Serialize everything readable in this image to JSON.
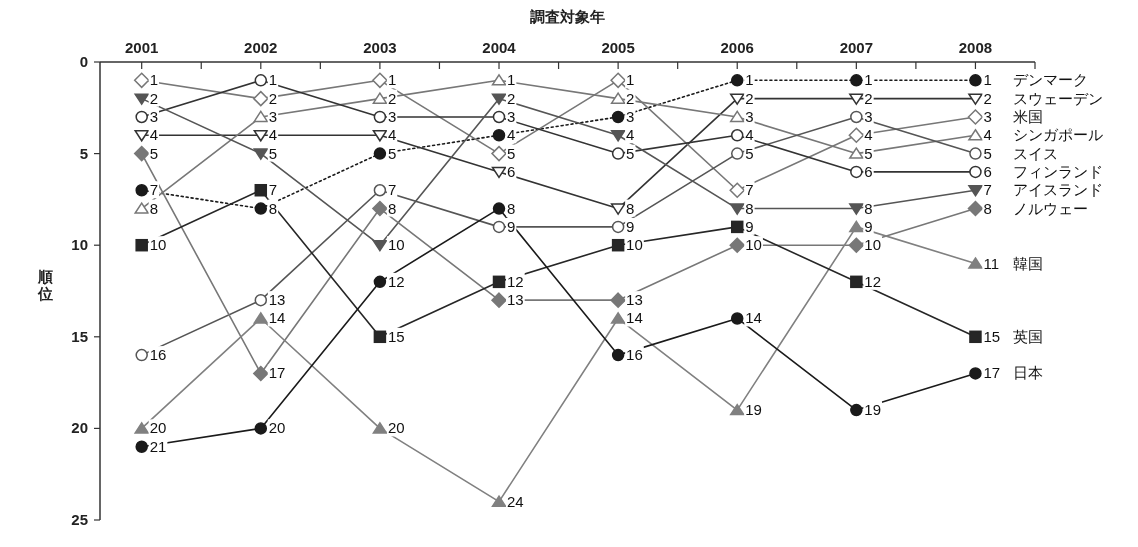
{
  "chart_data": {
    "type": "line",
    "xlabel": "調査対象年",
    "ylabel": "順位",
    "x": [
      2001,
      2002,
      2003,
      2004,
      2005,
      2006,
      2007,
      2008
    ],
    "xlim": [
      2000.65,
      2008.5
    ],
    "xticks": [
      2001,
      {
        "value": 2001.5,
        "label": null
      },
      2002,
      {
        "value": 2002.5,
        "label": null
      },
      2003,
      {
        "value": 2003.5,
        "label": null
      },
      2004,
      {
        "value": 2004.5,
        "label": null
      },
      2005,
      {
        "value": 2005.5,
        "label": null
      },
      2006,
      {
        "value": 2006.5,
        "label": null
      },
      2007,
      {
        "value": 2007.5,
        "label": null
      },
      2008,
      {
        "value": 2008.5,
        "label": null
      }
    ],
    "ylim": [
      25,
      0
    ],
    "yticks": [
      0,
      5,
      10,
      15,
      20,
      25
    ],
    "data_labels": true,
    "legend": false,
    "grid": false,
    "series": [
      {
        "name": "デンマーク",
        "color": "#1a1a1a",
        "marker": "circle",
        "line_style": "dotted",
        "values": [
          7,
          8,
          5,
          4,
          3,
          1,
          1,
          1
        ]
      },
      {
        "name": "スウェーデン",
        "color": "#333333",
        "marker": "triangle-down-open",
        "line_style": "solid",
        "values": [
          4,
          4,
          4,
          6,
          8,
          2,
          2,
          2
        ]
      },
      {
        "name": "米国",
        "color": "#777777",
        "marker": "diamond-open",
        "line_style": "solid",
        "values": [
          1,
          2,
          1,
          5,
          1,
          7,
          4,
          3
        ]
      },
      {
        "name": "シンガポール",
        "color": "#777777",
        "marker": "triangle-open",
        "line_style": "solid",
        "values": [
          8,
          3,
          2,
          1,
          2,
          3,
          5,
          4
        ]
      },
      {
        "name": "スイス",
        "color": "#555555",
        "marker": "circle-open",
        "line_style": "solid",
        "values": [
          16,
          13,
          7,
          9,
          9,
          5,
          3,
          5
        ]
      },
      {
        "name": "フィンランド",
        "color": "#333333",
        "marker": "circle-open",
        "line_style": "solid",
        "values": [
          3,
          1,
          3,
          3,
          5,
          4,
          6,
          6
        ]
      },
      {
        "name": "アイスランド",
        "color": "#555555",
        "marker": "triangle-down",
        "line_style": "solid",
        "values": [
          2,
          5,
          10,
          2,
          4,
          8,
          8,
          7
        ]
      },
      {
        "name": "ノルウェー",
        "color": "#777777",
        "marker": "diamond",
        "line_style": "solid",
        "values": [
          5,
          17,
          8,
          13,
          13,
          10,
          10,
          8
        ]
      },
      {
        "name": "韓国",
        "color": "#808080",
        "marker": "triangle",
        "line_style": "solid",
        "values": [
          20,
          14,
          20,
          24,
          14,
          19,
          9,
          11
        ]
      },
      {
        "name": "英国",
        "color": "#262626",
        "marker": "square",
        "line_style": "solid",
        "values": [
          10,
          7,
          15,
          12,
          10,
          9,
          12,
          15
        ]
      },
      {
        "name": "日本",
        "color": "#1a1a1a",
        "marker": "circle",
        "line_style": "solid",
        "values": [
          21,
          20,
          12,
          8,
          16,
          14,
          19,
          17
        ]
      }
    ]
  }
}
